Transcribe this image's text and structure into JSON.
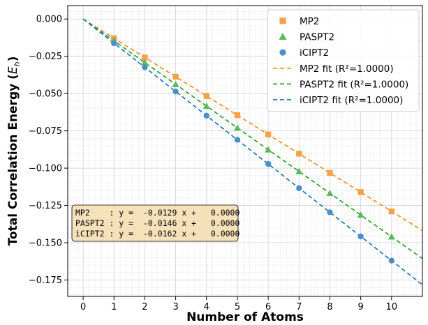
{
  "chart_data": {
    "type": "scatter",
    "xlabel": "Number of Atoms",
    "ylabel": "Total Correlation Energy (",
    "ylabel_sym": "E",
    "ylabel_sub": "h",
    "ylabel_close": ")",
    "xlim": [
      -0.5,
      11.0
    ],
    "ylim": [
      -0.186,
      0.009
    ],
    "xticks": [
      "0",
      "1",
      "2",
      "3",
      "4",
      "5",
      "6",
      "7",
      "8",
      "9",
      "10"
    ],
    "yticks": [
      "0.000",
      "−0.025",
      "−0.050",
      "−0.075",
      "−0.100",
      "−0.125",
      "−0.150",
      "−0.175"
    ],
    "ytick_values": [
      0.0,
      -0.025,
      -0.05,
      -0.075,
      -0.1,
      -0.125,
      -0.15,
      -0.175
    ],
    "grid": true,
    "minor_grid": true,
    "legend_position": "top-right",
    "series": [
      {
        "name": "MP2",
        "marker": "square",
        "color": "#f5a04a",
        "x": [
          1,
          2,
          3,
          4,
          5,
          6,
          7,
          8,
          9,
          10
        ],
        "y": [
          -0.0129,
          -0.0258,
          -0.0387,
          -0.0516,
          -0.0645,
          -0.0774,
          -0.0903,
          -0.1032,
          -0.1161,
          -0.129
        ]
      },
      {
        "name": "PASPT2",
        "marker": "triangle",
        "color": "#5cb85c",
        "x": [
          1,
          2,
          3,
          4,
          5,
          6,
          7,
          8,
          9,
          10
        ],
        "y": [
          -0.0146,
          -0.0292,
          -0.0438,
          -0.0584,
          -0.073,
          -0.0876,
          -0.1022,
          -0.1168,
          -0.1314,
          -0.146
        ]
      },
      {
        "name": "iCIPT2",
        "marker": "circle",
        "color": "#4a90c8",
        "x": [
          1,
          2,
          3,
          4,
          5,
          6,
          7,
          8,
          9,
          10
        ],
        "y": [
          -0.0162,
          -0.0324,
          -0.0486,
          -0.0648,
          -0.081,
          -0.0972,
          -0.1134,
          -0.1296,
          -0.1458,
          -0.162
        ]
      }
    ],
    "fits": [
      {
        "name": "MP2 fit (R²=1.0000)",
        "color": "#f28e2b",
        "slope": -0.0129,
        "intercept": 0.0,
        "x_range": [
          0,
          11
        ]
      },
      {
        "name": "PASPT2 fit (R²=1.0000)",
        "color": "#2ca02c",
        "slope": -0.0146,
        "intercept": 0.0,
        "x_range": [
          0,
          11
        ]
      },
      {
        "name": "iCIPT2 fit (R²=1.0000)",
        "color": "#1f77b4",
        "slope": -0.0162,
        "intercept": 0.0,
        "x_range": [
          0,
          11
        ]
      }
    ],
    "annotation": {
      "lines": [
        "MP2    : y =  -0.0129 x +   0.0000",
        "PASPT2 : y =  -0.0146 x +   0.0000",
        "iCIPT2 : y =  -0.0162 x +   0.0000"
      ],
      "background": "#f5deb3"
    }
  }
}
